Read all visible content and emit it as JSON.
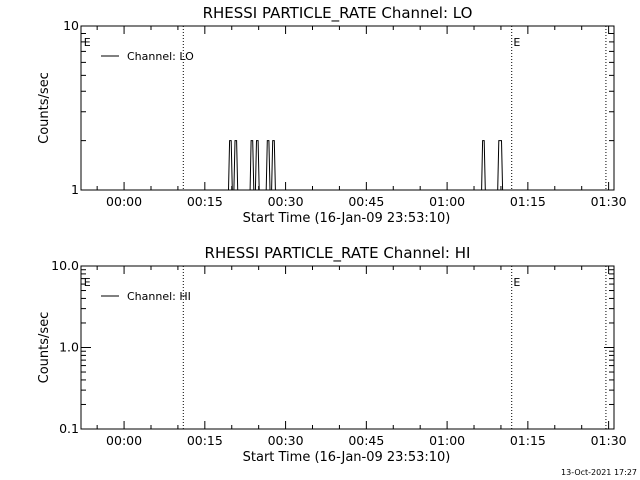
{
  "footer": {
    "timestamp": "13-Oct-2021 17:27"
  },
  "chart_data": [
    {
      "type": "line",
      "title": "RHESSI PARTICLE_RATE Channel: LO",
      "xlabel": "Start Time (16-Jan-09 23:53:10)",
      "ylabel": "Counts/sec",
      "x_unit": "minutes",
      "xlim": [
        -8,
        91
      ],
      "ylim": [
        1,
        10
      ],
      "y_scale": "log",
      "x_ticks": [
        0,
        15,
        30,
        45,
        60,
        75,
        90
      ],
      "x_tick_labels": [
        "00:00",
        "00:15",
        "00:30",
        "00:45",
        "01:00",
        "01:15",
        "01:30"
      ],
      "y_ticks": [
        1,
        10
      ],
      "y_tick_labels": [
        "1",
        "10"
      ],
      "vlines": [
        11,
        72,
        89.5
      ],
      "event_marks": [
        {
          "x": -7.5,
          "label": "E"
        },
        {
          "x": 72.3,
          "label": "E"
        }
      ],
      "legend": {
        "position": "top-left",
        "entries": [
          "Channel: LO"
        ]
      },
      "grid": false,
      "series": [
        {
          "name": "Channel: LO",
          "points": [
            [
              -8,
              1
            ],
            [
              19.4,
              1
            ],
            [
              19.6,
              2
            ],
            [
              19.9,
              2
            ],
            [
              20.1,
              1
            ],
            [
              20.4,
              1
            ],
            [
              20.6,
              2
            ],
            [
              20.9,
              2
            ],
            [
              21.1,
              1
            ],
            [
              23.4,
              1
            ],
            [
              23.6,
              2
            ],
            [
              23.9,
              2
            ],
            [
              24.1,
              1
            ],
            [
              24.4,
              1
            ],
            [
              24.6,
              2
            ],
            [
              24.9,
              2
            ],
            [
              25.1,
              1
            ],
            [
              26.4,
              1
            ],
            [
              26.6,
              2
            ],
            [
              26.9,
              2
            ],
            [
              27.1,
              1
            ],
            [
              27.4,
              1
            ],
            [
              27.6,
              2
            ],
            [
              27.9,
              2
            ],
            [
              28.1,
              1
            ],
            [
              66.4,
              1
            ],
            [
              66.6,
              2
            ],
            [
              66.9,
              2
            ],
            [
              67.1,
              1
            ],
            [
              69.4,
              1
            ],
            [
              69.6,
              2
            ],
            [
              70.1,
              2
            ],
            [
              70.3,
              1
            ],
            [
              91,
              1
            ]
          ]
        }
      ]
    },
    {
      "type": "line",
      "title": "RHESSI PARTICLE_RATE Channel: HI",
      "xlabel": "Start Time (16-Jan-09 23:53:10)",
      "ylabel": "Counts/sec",
      "x_unit": "minutes",
      "xlim": [
        -8,
        91
      ],
      "ylim": [
        0.1,
        10
      ],
      "y_scale": "log",
      "x_ticks": [
        0,
        15,
        30,
        45,
        60,
        75,
        90
      ],
      "x_tick_labels": [
        "00:00",
        "00:15",
        "00:30",
        "00:45",
        "01:00",
        "01:15",
        "01:30"
      ],
      "y_ticks": [
        0.1,
        1,
        10
      ],
      "y_tick_labels": [
        "0.1",
        "1.0",
        "10.0"
      ],
      "vlines": [
        11,
        72,
        89.5
      ],
      "event_marks": [
        {
          "x": -7.5,
          "label": "E"
        },
        {
          "x": 72.3,
          "label": "E"
        }
      ],
      "legend": {
        "position": "top-left",
        "entries": [
          "Channel: HI"
        ]
      },
      "grid": false,
      "series": [
        {
          "name": "Channel: HI",
          "points": []
        }
      ]
    }
  ]
}
